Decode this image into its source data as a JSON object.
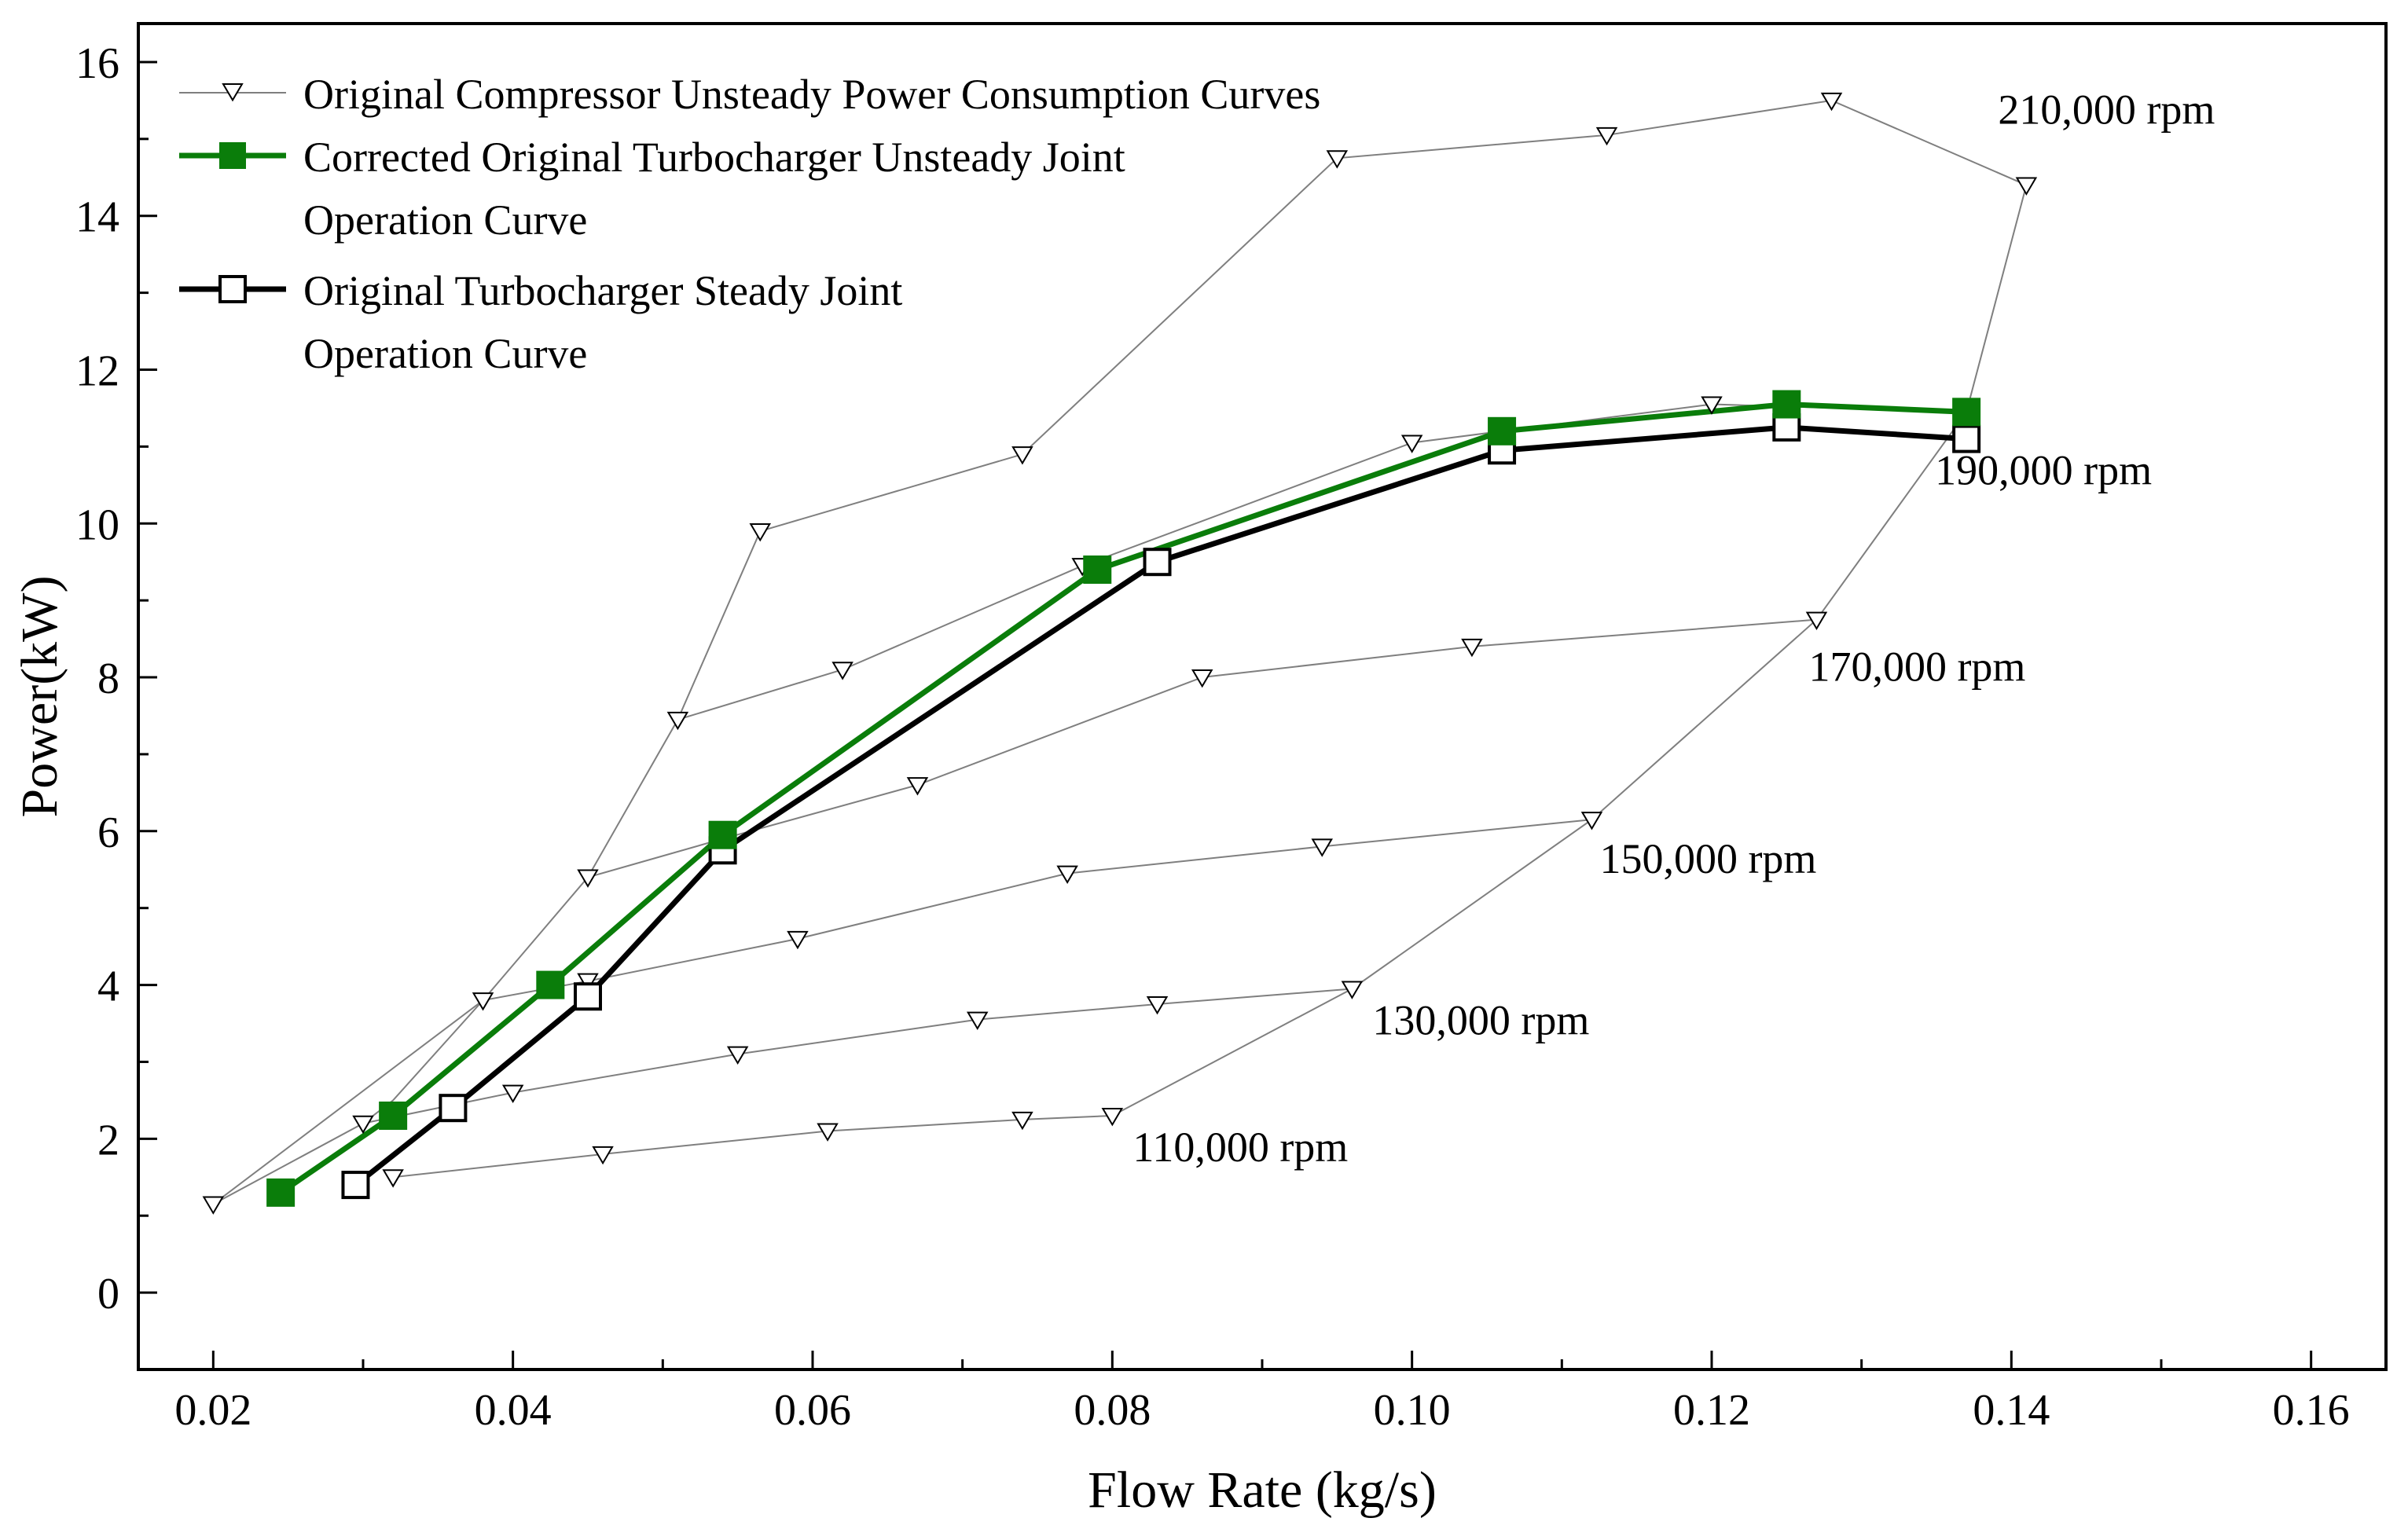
{
  "chart_data": {
    "type": "line",
    "xlabel": "Flow Rate (kg/s)",
    "ylabel": "Power(kW)",
    "xlim": [
      0.015,
      0.165
    ],
    "ylim": [
      -1,
      16.5
    ],
    "x_ticks": [
      0.02,
      0.04,
      0.06,
      0.08,
      0.1,
      0.12,
      0.14,
      0.16
    ],
    "x_tick_labels": [
      "0.02",
      "0.04",
      "0.06",
      "0.08",
      "0.10",
      "0.12",
      "0.14",
      "0.16"
    ],
    "y_ticks": [
      0,
      2,
      4,
      6,
      8,
      10,
      12,
      14,
      16
    ],
    "y_tick_labels": [
      "0",
      "2",
      "4",
      "6",
      "8",
      "10",
      "12",
      "14",
      "16"
    ],
    "grid": false,
    "legend": {
      "position": "top-left",
      "entries": [
        {
          "lines": [
            "Original Compressor Unsteady Power Consumption Curves"
          ],
          "marker": "triangle-down-open",
          "color": "#7f7f7f"
        },
        {
          "lines": [
            "Corrected Original Turbocharger Unsteady Joint",
            "Operation Curve"
          ],
          "marker": "square-filled",
          "color": "#0a7d0a"
        },
        {
          "lines": [
            "Original Turbocharger Steady Joint",
            "Operation Curve"
          ],
          "marker": "square-open",
          "color": "#000000"
        }
      ]
    },
    "colors": {
      "compressor": "#7f7f7f",
      "corrected": "#0a7d0a",
      "steady": "#000000"
    },
    "speed_lines": [
      {
        "label": "110,000 rpm",
        "x": [
          0.032,
          0.046,
          0.061,
          0.074,
          0.08
        ],
        "y": [
          1.5,
          1.8,
          2.1,
          2.25,
          2.3
        ]
      },
      {
        "label": "130,000 rpm",
        "x": [
          0.03,
          0.04,
          0.055,
          0.071,
          0.083,
          0.096
        ],
        "y": [
          2.2,
          2.6,
          3.1,
          3.55,
          3.75,
          3.95
        ]
      },
      {
        "label": "150,000 rpm",
        "x": [
          0.02,
          0.038,
          0.045,
          0.059,
          0.077,
          0.094,
          0.112
        ],
        "y": [
          1.15,
          3.8,
          4.05,
          4.6,
          5.45,
          5.8,
          6.15
        ]
      },
      {
        "label": "170,000 rpm",
        "x": [
          0.045,
          0.054,
          0.067,
          0.086,
          0.104,
          0.127
        ],
        "y": [
          5.4,
          5.9,
          6.6,
          8.0,
          8.4,
          8.75
        ]
      },
      {
        "label": "190,000 rpm",
        "x": [
          0.051,
          0.062,
          0.078,
          0.1,
          0.12,
          0.137
        ],
        "y": [
          7.45,
          8.1,
          9.45,
          11.05,
          11.55,
          11.45
        ]
      },
      {
        "label": "210,000 rpm",
        "x": [
          0.0565,
          0.074,
          0.095,
          0.113,
          0.128,
          0.141
        ],
        "y": [
          9.9,
          10.9,
          14.75,
          15.05,
          15.5,
          14.4
        ]
      }
    ],
    "surge_line": {
      "x": [
        0.02,
        0.03,
        0.032,
        0.038,
        0.045,
        0.051,
        0.0565
      ],
      "y": [
        1.15,
        2.2,
        2.5,
        3.8,
        5.4,
        7.45,
        9.9
      ]
    },
    "choke_line": {
      "x": [
        0.08,
        0.096,
        0.112,
        0.127,
        0.137,
        0.141
      ],
      "y": [
        2.3,
        3.95,
        6.15,
        8.75,
        11.45,
        14.4
      ]
    },
    "series": [
      {
        "name": "Corrected Original Turbocharger Unsteady Joint Operation Curve",
        "x": [
          0.0245,
          0.032,
          0.0425,
          0.054,
          0.079,
          0.106,
          0.125,
          0.137
        ],
        "y": [
          1.3,
          2.3,
          4.0,
          5.95,
          9.4,
          11.2,
          11.55,
          11.45
        ]
      },
      {
        "name": "Original Turbocharger Steady Joint Operation Curve",
        "x": [
          0.0295,
          0.036,
          0.045,
          0.054,
          0.083,
          0.106,
          0.125,
          0.137
        ],
        "y": [
          1.4,
          2.4,
          3.85,
          5.75,
          9.5,
          10.95,
          11.25,
          11.1
        ]
      }
    ]
  }
}
